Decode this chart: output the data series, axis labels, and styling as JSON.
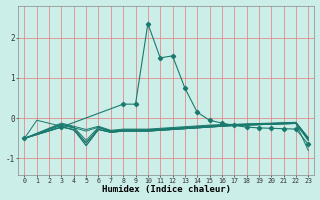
{
  "xlabel": "Humidex (Indice chaleur)",
  "xlim": [
    -0.5,
    23.5
  ],
  "ylim": [
    -1.4,
    2.8
  ],
  "background_color": "#cceee8",
  "grid_color": "#e87878",
  "line_color": "#1a7a6e",
  "x_ticks": [
    0,
    1,
    2,
    3,
    4,
    5,
    6,
    7,
    8,
    9,
    10,
    11,
    12,
    13,
    14,
    15,
    16,
    17,
    18,
    19,
    20,
    21,
    22,
    23
  ],
  "y_ticks": [
    -1,
    0,
    1,
    2
  ],
  "series_plain": [
    {
      "x": [
        0,
        1,
        3,
        4,
        5,
        6,
        7,
        8,
        9,
        10,
        11,
        12,
        13,
        14,
        15,
        16,
        17,
        18,
        19,
        20,
        21,
        22,
        23
      ],
      "y": [
        -0.5,
        -0.05,
        -0.2,
        -0.3,
        -0.6,
        -0.28,
        -0.35,
        -0.32,
        -0.32,
        -0.32,
        -0.3,
        -0.28,
        -0.26,
        -0.24,
        -0.22,
        -0.2,
        -0.18,
        -0.17,
        -0.16,
        -0.15,
        -0.14,
        -0.13,
        -0.55
      ]
    },
    {
      "x": [
        0,
        3,
        4,
        5,
        6,
        7,
        8,
        9,
        10,
        11,
        12,
        13,
        14,
        15,
        16,
        17,
        18,
        19,
        20,
        21,
        22,
        23
      ],
      "y": [
        -0.5,
        -0.22,
        -0.28,
        -0.68,
        -0.28,
        -0.35,
        -0.32,
        -0.32,
        -0.32,
        -0.3,
        -0.28,
        -0.26,
        -0.24,
        -0.22,
        -0.2,
        -0.18,
        -0.17,
        -0.16,
        -0.15,
        -0.14,
        -0.13,
        -0.55
      ]
    },
    {
      "x": [
        0,
        3,
        4,
        5,
        6,
        7,
        8,
        9,
        10,
        11,
        12,
        13,
        14,
        15,
        16,
        17,
        18,
        19,
        20,
        21,
        22,
        23
      ],
      "y": [
        -0.5,
        -0.18,
        -0.24,
        -0.62,
        -0.24,
        -0.33,
        -0.3,
        -0.3,
        -0.3,
        -0.28,
        -0.26,
        -0.24,
        -0.22,
        -0.2,
        -0.18,
        -0.17,
        -0.16,
        -0.15,
        -0.14,
        -0.13,
        -0.12,
        -0.52
      ]
    },
    {
      "x": [
        0,
        3,
        4,
        5,
        6,
        7,
        8,
        9,
        10,
        11,
        12,
        13,
        14,
        15,
        16,
        17,
        18,
        19,
        20,
        21,
        22,
        23
      ],
      "y": [
        -0.5,
        -0.15,
        -0.22,
        -0.55,
        -0.22,
        -0.32,
        -0.29,
        -0.29,
        -0.29,
        -0.27,
        -0.25,
        -0.23,
        -0.21,
        -0.19,
        -0.17,
        -0.16,
        -0.15,
        -0.14,
        -0.13,
        -0.12,
        -0.11,
        -0.5
      ]
    },
    {
      "x": [
        0,
        3,
        5,
        6,
        7,
        8,
        9,
        10,
        11,
        12,
        13,
        14,
        15,
        16,
        17,
        18,
        19,
        20,
        21,
        22,
        23
      ],
      "y": [
        -0.5,
        -0.15,
        -0.32,
        -0.22,
        -0.32,
        -0.29,
        -0.29,
        -0.29,
        -0.27,
        -0.25,
        -0.23,
        -0.21,
        -0.19,
        -0.17,
        -0.16,
        -0.15,
        -0.14,
        -0.13,
        -0.12,
        -0.11,
        -0.5
      ]
    },
    {
      "x": [
        0,
        3,
        5,
        6,
        7,
        8,
        9,
        10,
        11,
        12,
        13,
        14,
        15,
        16,
        17,
        18,
        19,
        20,
        21,
        22,
        23
      ],
      "y": [
        -0.5,
        -0.12,
        -0.28,
        -0.2,
        -0.3,
        -0.27,
        -0.27,
        -0.27,
        -0.25,
        -0.23,
        -0.21,
        -0.19,
        -0.17,
        -0.16,
        -0.15,
        -0.14,
        -0.13,
        -0.12,
        -0.11,
        -0.1,
        -0.48
      ]
    },
    {
      "x": [
        0,
        3,
        4,
        5,
        6,
        7,
        8,
        9,
        10,
        11,
        12,
        13,
        14,
        15,
        16,
        17,
        18,
        19,
        20,
        21,
        22,
        23
      ],
      "y": [
        -0.5,
        -0.22,
        -0.28,
        -0.68,
        -0.28,
        -0.35,
        -0.32,
        -0.32,
        -0.32,
        -0.3,
        -0.28,
        -0.26,
        -0.24,
        -0.22,
        -0.2,
        -0.18,
        -0.17,
        -0.16,
        -0.15,
        -0.14,
        -0.13,
        -0.8
      ]
    }
  ],
  "series_marker": {
    "x": [
      0,
      3,
      8,
      9,
      10,
      11,
      12,
      13,
      14,
      15,
      16,
      17,
      18,
      19,
      20,
      21,
      22,
      23
    ],
    "y": [
      -0.5,
      -0.22,
      0.35,
      0.35,
      2.35,
      1.5,
      1.55,
      0.75,
      0.15,
      -0.05,
      -0.12,
      -0.18,
      -0.22,
      -0.24,
      -0.25,
      -0.26,
      -0.27,
      -0.65
    ]
  }
}
